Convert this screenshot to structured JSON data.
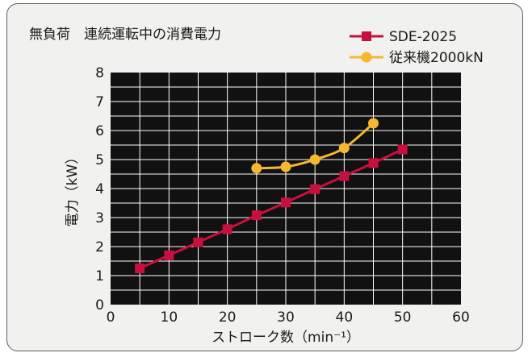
{
  "chart_data": {
    "type": "line",
    "title": "無負荷　連続運転中の消費電力",
    "xlabel": "ストローク数（min⁻¹）",
    "ylabel": "電力（kW）",
    "xlim": [
      0,
      60
    ],
    "ylim": [
      0,
      8
    ],
    "xticks": [
      "0",
      "10",
      "20",
      "30",
      "40",
      "50",
      "60"
    ],
    "yticks": [
      "0",
      "1",
      "2",
      "3",
      "4",
      "5",
      "6",
      "7",
      "8"
    ],
    "grid": true,
    "legend_position": "top-right",
    "series": [
      {
        "name": "SDE-2025",
        "color": "#c8103e",
        "marker": "square",
        "x": [
          5,
          10,
          15,
          20,
          25,
          30,
          35,
          40,
          45,
          50
        ],
        "y": [
          1.25,
          1.7,
          2.15,
          2.6,
          3.08,
          3.52,
          3.98,
          4.43,
          4.88,
          5.35
        ]
      },
      {
        "name": "従来機2000kN",
        "color": "#f5b82e",
        "marker": "circle",
        "x": [
          25,
          30,
          35,
          40,
          45
        ],
        "y": [
          4.7,
          4.75,
          5.0,
          5.4,
          6.25
        ]
      }
    ]
  }
}
